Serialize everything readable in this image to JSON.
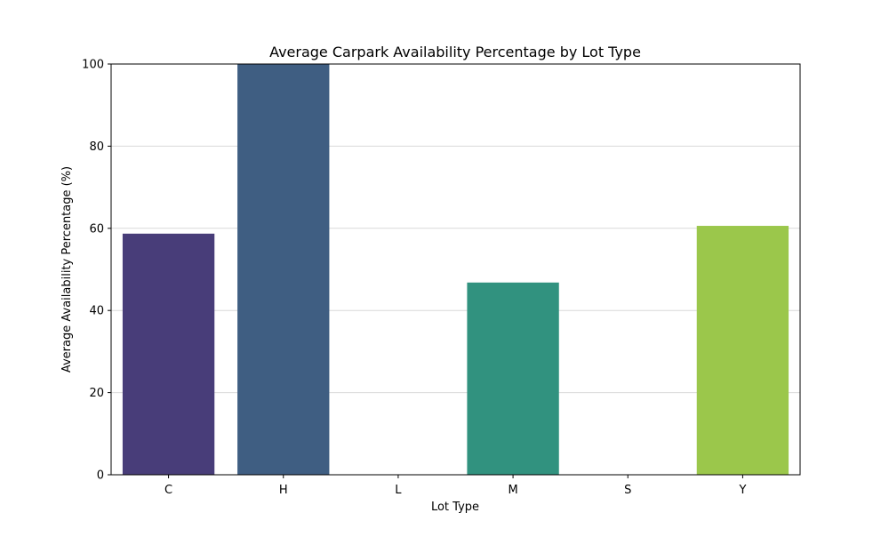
{
  "chart_data": {
    "type": "bar",
    "title": "Average Carpark Availability Percentage by Lot Type",
    "xlabel": "Lot Type",
    "ylabel": "Average Availability Percentage (%)",
    "categories": [
      "C",
      "H",
      "L",
      "M",
      "S",
      "Y"
    ],
    "values": [
      58.7,
      100,
      0,
      46.8,
      0,
      60.6
    ],
    "colors": [
      "#483d79",
      "#3f5e82",
      "#2e7d8b",
      "#31927f",
      "#54ad6a",
      "#9bc74b"
    ],
    "ylim": [
      0,
      100
    ],
    "yticks": [
      0,
      20,
      40,
      60,
      80,
      100
    ],
    "grid": "horizontal",
    "grid_color": "#d9d9d9",
    "legend": "none"
  }
}
